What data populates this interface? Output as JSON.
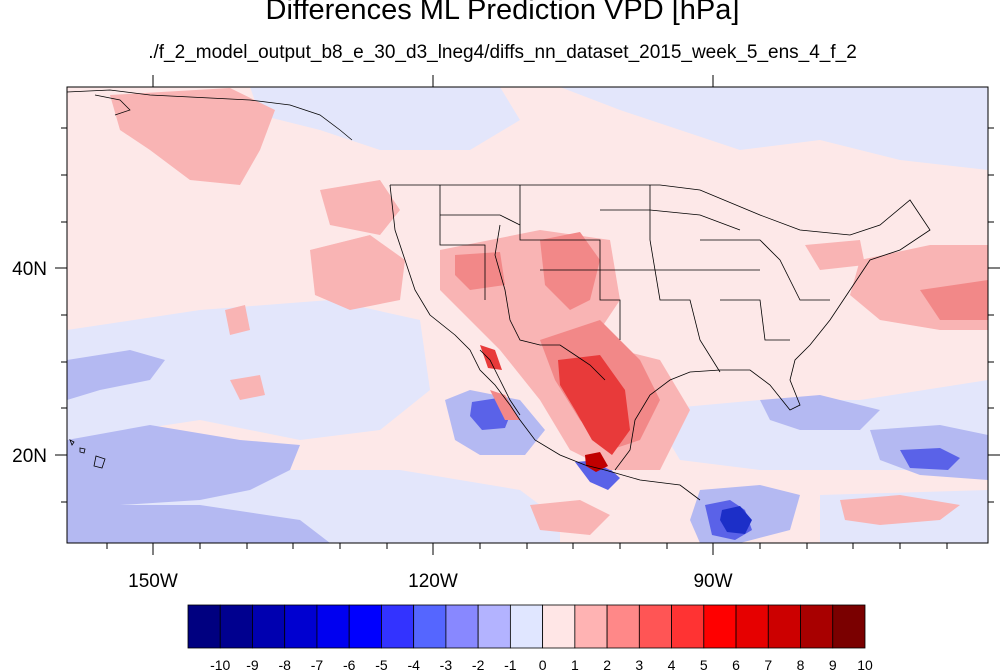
{
  "title": "Differences ML Prediction VPD [hPa]",
  "subtitle": "./f_2_model_output_b8_e_30_d3_lneg4/diffs_nn_dataset_2015_week_5_ens_4_f_2",
  "map": {
    "lat_labels": [
      "40N",
      "20N"
    ],
    "lon_labels": [
      "150W",
      "120W",
      "90W"
    ]
  },
  "colorbar": {
    "labels": [
      "-10",
      "-9",
      "-8",
      "-7",
      "-6",
      "-5",
      "-4",
      "-3",
      "-2",
      "-1",
      "0",
      "1",
      "2",
      "3",
      "4",
      "5",
      "6",
      "7",
      "8",
      "9",
      "10"
    ],
    "colors": [
      "#000080",
      "#00008f",
      "#0000b0",
      "#0000d0",
      "#0000f0",
      "#0000ff",
      "#3333ff",
      "#5566ff",
      "#8888ff",
      "#b3b3ff",
      "#e0e6ff",
      "#ffe6e6",
      "#ffb3b3",
      "#ff8888",
      "#ff5555",
      "#ff3333",
      "#ff0000",
      "#e60000",
      "#cc0000",
      "#a80000",
      "#7a0000"
    ]
  }
}
